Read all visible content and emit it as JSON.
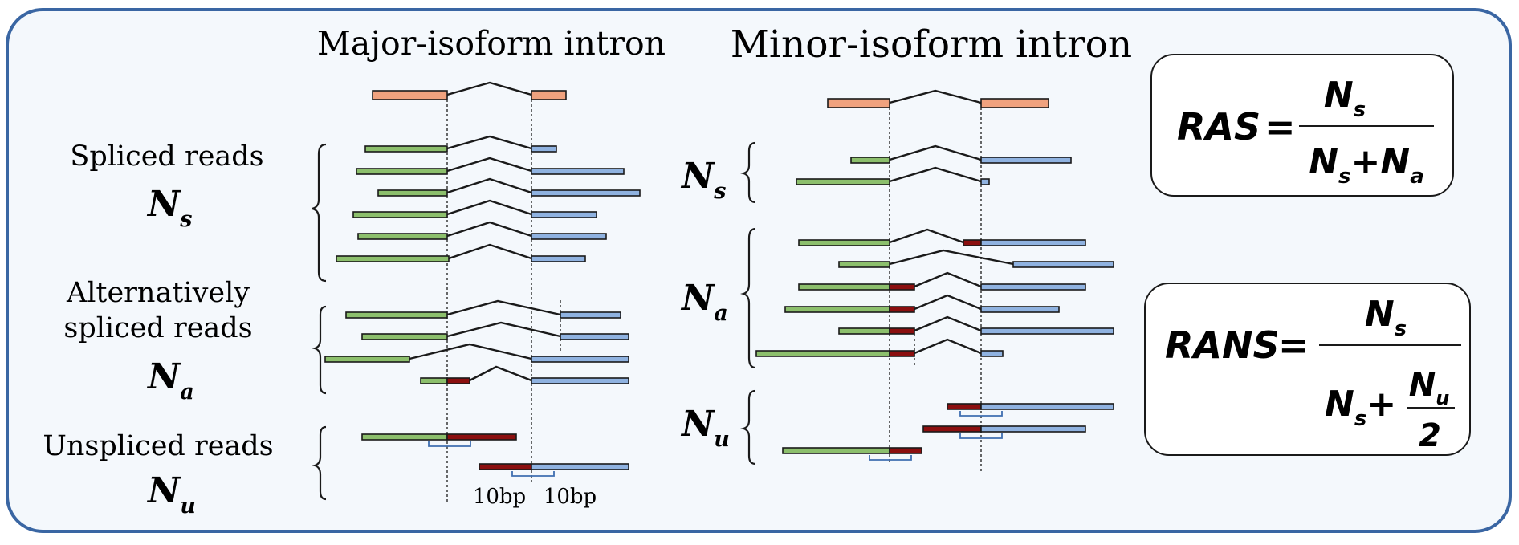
{
  "colors": {
    "panel_bg": "#f4f8fc",
    "panel_border": "#3a66a3",
    "exon": "#f0a27e",
    "green": "#8cbf6c",
    "blue": "#8fb2e0",
    "red": "#8b0f0f"
  },
  "major": {
    "title": "Major-isoform intron",
    "spliced_label": "Spliced reads",
    "alt_label_line1": "Alternatively",
    "alt_label_line2": "spliced reads",
    "unspliced_label": "Unspliced reads",
    "bp_left": "10bp",
    "bp_right": "10bp"
  },
  "minor": {
    "title": "Minor-isoform intron"
  },
  "symbols": {
    "N": "N",
    "s": "s",
    "a": "a",
    "u": "u"
  },
  "formulas": {
    "ras_name": "RAS",
    "rans_name": "RANS",
    "equals": "=",
    "plus": "+",
    "two": "2"
  }
}
